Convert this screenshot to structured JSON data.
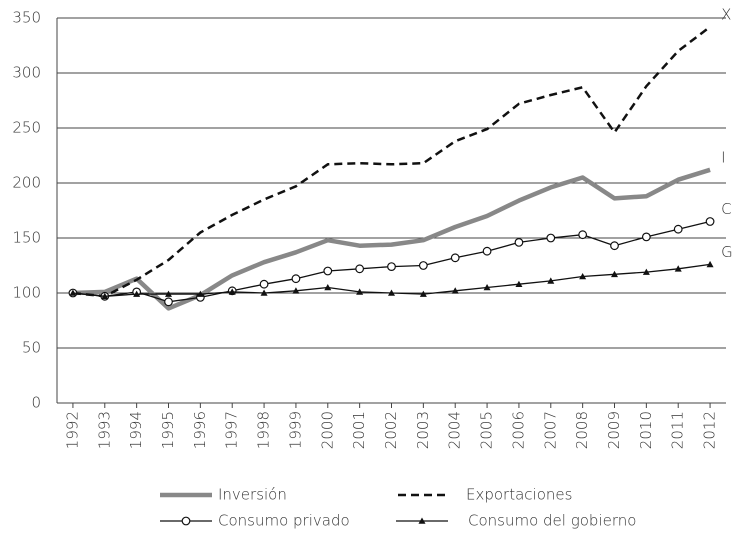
{
  "chart_data": {
    "type": "line",
    "categories": [
      "1992",
      "1993",
      "1994",
      "1995",
      "1996",
      "1997",
      "1998",
      "1999",
      "2000",
      "2001",
      "2002",
      "2003",
      "2004",
      "2005",
      "2006",
      "2007",
      "2008",
      "2009",
      "2010",
      "2011",
      "2012"
    ],
    "series": [
      {
        "name": "Inversión",
        "color": "#888888",
        "style": "thick",
        "values": [
          100,
          101,
          113,
          86,
          98,
          116,
          128,
          137,
          148,
          143,
          144,
          148,
          160,
          170,
          184,
          196,
          205,
          186,
          188,
          203,
          212
        ]
      },
      {
        "name": "Exportaciones",
        "color": "#111111",
        "style": "dashed",
        "values": [
          100,
          97,
          112,
          130,
          155,
          171,
          185,
          197,
          217,
          218,
          217,
          218,
          238,
          249,
          272,
          280,
          287,
          246,
          288,
          320,
          342
        ]
      },
      {
        "name": "Consumo privado",
        "color": "#111111",
        "style": "circle",
        "values": [
          100,
          97,
          101,
          92,
          96,
          102,
          108,
          113,
          120,
          122,
          124,
          125,
          132,
          138,
          146,
          150,
          153,
          143,
          151,
          158,
          165
        ]
      },
      {
        "name": "Consumo del gobierno",
        "color": "#111111",
        "style": "triangle",
        "values": [
          100,
          97,
          99,
          99,
          99,
          101,
          100,
          102,
          105,
          101,
          100,
          99,
          102,
          105,
          108,
          111,
          115,
          117,
          119,
          122,
          126
        ]
      }
    ],
    "annotations": [
      "I",
      "X",
      "C",
      "G"
    ],
    "ylim": [
      0,
      350
    ],
    "yticks": [
      0,
      50,
      100,
      150,
      200,
      250,
      300,
      350
    ],
    "grid": true
  }
}
